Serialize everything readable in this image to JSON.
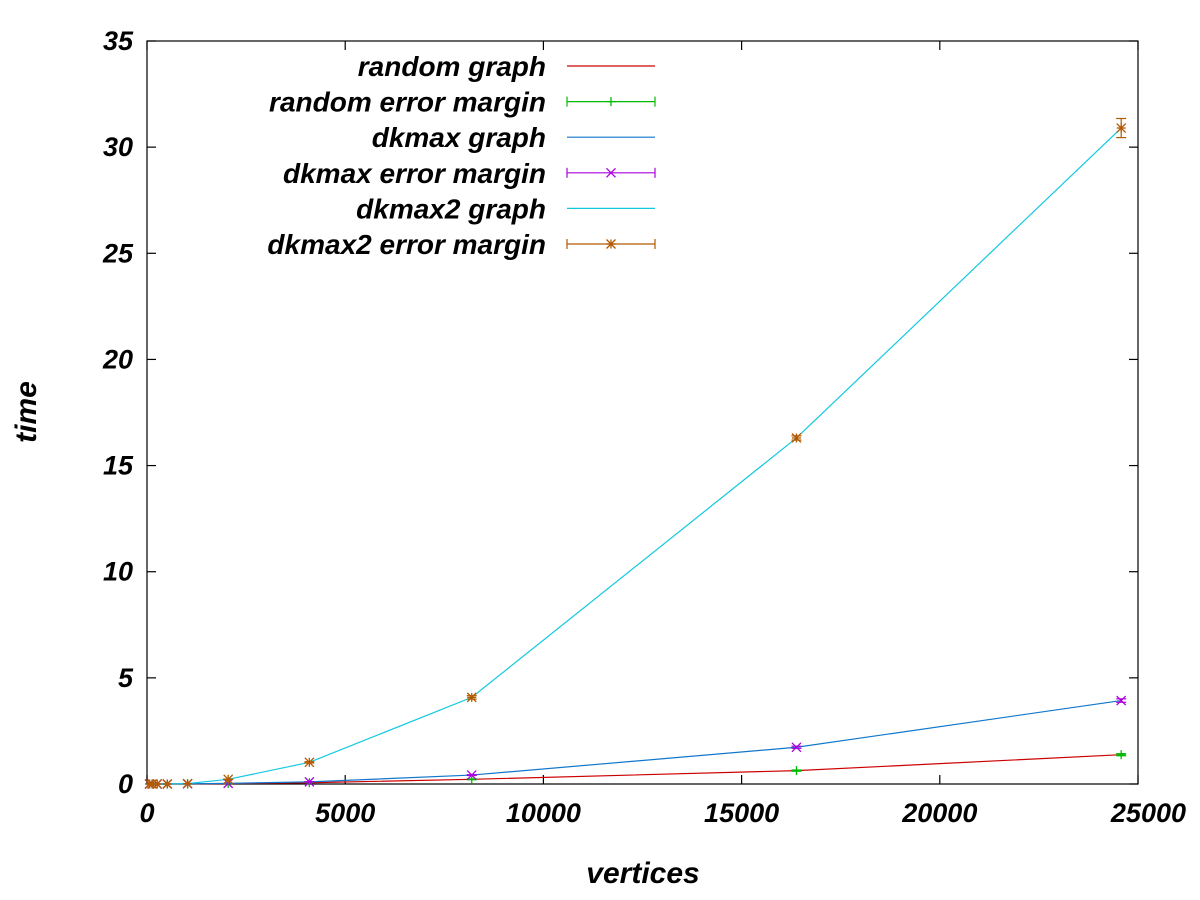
{
  "chart_data": {
    "type": "line",
    "title": "",
    "xlabel": "vertices",
    "ylabel": "time",
    "xlim": [
      0,
      25000
    ],
    "ylim": [
      0,
      35
    ],
    "xticks": [
      0,
      5000,
      10000,
      15000,
      20000,
      25000
    ],
    "xtick_labels": [
      "0",
      "5000",
      "10000",
      "15000",
      "20000",
      "25000"
    ],
    "yticks": [
      0,
      5,
      10,
      15,
      20,
      25,
      30,
      35
    ],
    "ytick_labels": [
      "0",
      "5",
      "10",
      "15",
      "20",
      "25",
      "30",
      "35"
    ],
    "grid": false,
    "legend_position": "top-left",
    "x": [
      64,
      128,
      256,
      512,
      1024,
      2048,
      4096,
      8192,
      16384,
      24576
    ],
    "series": [
      {
        "name": "random graph",
        "kind": "line",
        "color": "#cc0000",
        "values": [
          0,
          0,
          0,
          0,
          0,
          0.02,
          0.06,
          0.22,
          0.63,
          1.38
        ]
      },
      {
        "name": "random error margin",
        "kind": "errorbars",
        "marker": "plus",
        "color": "#00bb00",
        "values": [
          0,
          0,
          0,
          0,
          0,
          0.02,
          0.06,
          0.22,
          0.63,
          1.38
        ],
        "errors": [
          0,
          0,
          0,
          0,
          0,
          0,
          0,
          0.02,
          0.03,
          0.05
        ]
      },
      {
        "name": "dkmax graph",
        "kind": "line",
        "color": "#1177cc",
        "values": [
          0,
          0,
          0,
          0,
          0.01,
          0.03,
          0.1,
          0.42,
          1.73,
          3.93
        ]
      },
      {
        "name": "dkmax error margin",
        "kind": "errorbars",
        "marker": "cross",
        "color": "#aa00dd",
        "values": [
          0,
          0,
          0,
          0,
          0.01,
          0.03,
          0.1,
          0.42,
          1.73,
          3.93
        ],
        "errors": [
          0,
          0,
          0,
          0,
          0,
          0,
          0.01,
          0.02,
          0.05,
          0.08
        ]
      },
      {
        "name": "dkmax2 graph",
        "kind": "line",
        "color": "#11c8e0",
        "values": [
          0,
          0,
          0,
          0,
          0.02,
          0.22,
          1.02,
          4.08,
          16.3,
          30.9
        ]
      },
      {
        "name": "dkmax2 error margin",
        "kind": "errorbars",
        "marker": "star",
        "color": "#b35a00",
        "values": [
          0,
          0,
          0,
          0,
          0.02,
          0.22,
          1.02,
          4.08,
          16.3,
          30.9
        ],
        "errors": [
          0,
          0,
          0,
          0,
          0,
          0.01,
          0.03,
          0.08,
          0.1,
          0.45
        ]
      }
    ]
  }
}
